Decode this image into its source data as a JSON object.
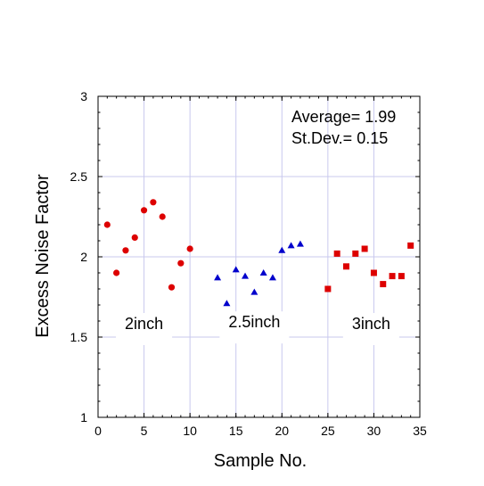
{
  "chart_data": {
    "type": "scatter",
    "title": "",
    "xlabel": "Sample No.",
    "ylabel": "Excess Noise Factor",
    "xlim": [
      0,
      35
    ],
    "ylim": [
      1,
      3
    ],
    "x_ticks": [
      0,
      5,
      10,
      15,
      20,
      25,
      30,
      35
    ],
    "y_ticks": [
      1,
      1.5,
      2,
      2.5,
      3
    ],
    "grid": true,
    "legend": "none",
    "annotations": {
      "average": "Average= 1.99",
      "stdev": "St.Dev.= 0.15"
    },
    "series": [
      {
        "name": "2inch",
        "color": "#dd0000",
        "marker": "circle",
        "label_position": {
          "x": 5,
          "y": 1.55
        },
        "x": [
          1,
          2,
          3,
          4,
          5,
          6,
          7,
          8,
          9,
          10
        ],
        "y": [
          2.2,
          1.9,
          2.04,
          2.12,
          2.29,
          2.34,
          2.25,
          1.81,
          1.96,
          2.05
        ]
      },
      {
        "name": "2.5inch",
        "color": "#0000cc",
        "marker": "triangle",
        "label_position": {
          "x": 17,
          "y": 1.56
        },
        "x": [
          13,
          14,
          15,
          16,
          17,
          18,
          19,
          20,
          21,
          22
        ],
        "y": [
          1.87,
          1.71,
          1.92,
          1.88,
          1.78,
          1.9,
          1.87,
          2.04,
          2.07,
          2.08
        ]
      },
      {
        "name": "3inch",
        "color": "#dd0000",
        "marker": "square",
        "label_position": {
          "x": 29.7,
          "y": 1.55
        },
        "x": [
          25,
          26,
          27,
          28,
          29,
          30,
          31,
          32,
          33,
          34
        ],
        "y": [
          1.8,
          2.02,
          1.94,
          2.02,
          2.05,
          1.9,
          1.83,
          1.88,
          1.88,
          2.07
        ]
      }
    ]
  }
}
